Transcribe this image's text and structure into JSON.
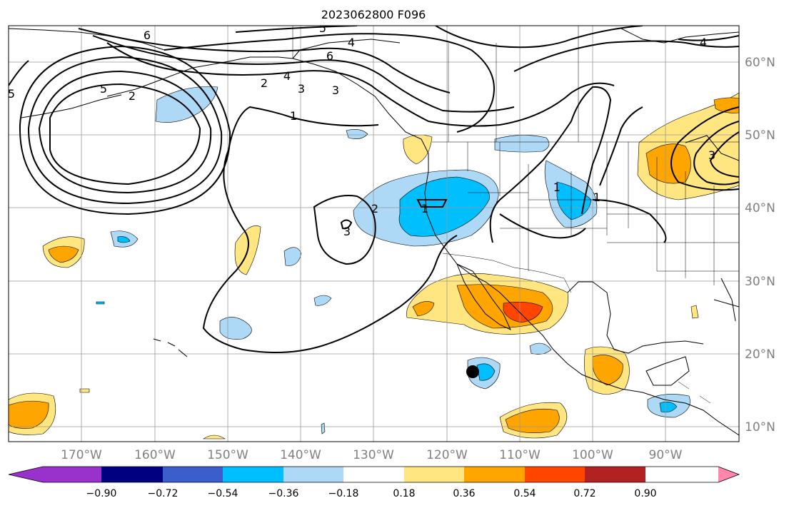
{
  "title": "2023062800 F096",
  "map": {
    "lon_labels": [
      "170°W",
      "160°W",
      "150°W",
      "140°W",
      "130°W",
      "120°W",
      "110°W",
      "100°W",
      "90°W"
    ],
    "lat_labels": [
      "60°N",
      "50°N",
      "40°N",
      "30°N",
      "20°N",
      "10°N"
    ],
    "contour_labels": [
      "6",
      "4",
      "5",
      "2",
      "4",
      "3",
      "1",
      "5",
      "6",
      "5",
      "2",
      "3",
      "2",
      "1",
      "3",
      "1",
      "1",
      "3",
      "4"
    ],
    "marker": {
      "name": "black-dot-marker",
      "lon": -116.5,
      "lat": 17.5
    }
  },
  "colorbar": {
    "ticks": [
      "−0.90",
      "−0.72",
      "−0.54",
      "−0.36",
      "−0.18",
      "0.18",
      "0.36",
      "0.54",
      "0.72",
      "0.90"
    ],
    "colors": [
      "#9932cc",
      "#000080",
      "#3a5fcd",
      "#00bfff",
      "#add8f6",
      "#ffffff",
      "#ffe680",
      "#ffa500",
      "#ff4500",
      "#b22222",
      "#ff88aa"
    ]
  }
}
